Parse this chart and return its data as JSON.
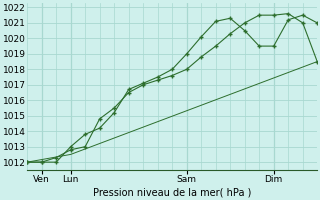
{
  "bg_color": "#cff0ec",
  "grid_color": "#a8d8d0",
  "line_color": "#2d6e2d",
  "marker_color": "#2d6e2d",
  "title": "Pression niveau de la mer( hPa )",
  "ylabel_ticks": [
    1012,
    1013,
    1014,
    1015,
    1016,
    1017,
    1018,
    1019,
    1020,
    1021,
    1022
  ],
  "ylim": [
    1011.5,
    1022.3
  ],
  "xlim": [
    0,
    20
  ],
  "x_ticks": [
    1,
    3,
    11,
    17
  ],
  "x_tick_labels": [
    "Ven",
    "Lun",
    "Sam",
    "Dim"
  ],
  "series1_x": [
    0,
    1,
    2,
    3,
    4,
    5,
    6,
    7,
    8,
    9,
    10,
    11,
    12,
    13,
    14,
    15,
    16,
    17,
    18,
    19,
    20
  ],
  "series1_y": [
    1012.0,
    1012.0,
    1012.0,
    1013.0,
    1013.8,
    1014.2,
    1015.2,
    1016.7,
    1017.1,
    1017.5,
    1018.0,
    1019.0,
    1020.1,
    1021.1,
    1021.3,
    1020.5,
    1019.5,
    1019.5,
    1021.2,
    1021.5,
    1021.0
  ],
  "series2_x": [
    0,
    1,
    2,
    3,
    4,
    5,
    6,
    7,
    8,
    9,
    10,
    11,
    12,
    13,
    14,
    15,
    16,
    17,
    18,
    19,
    20
  ],
  "series2_y": [
    1012.0,
    1012.0,
    1012.3,
    1012.8,
    1013.0,
    1014.8,
    1015.5,
    1016.5,
    1017.0,
    1017.3,
    1017.6,
    1018.0,
    1018.8,
    1019.5,
    1020.3,
    1021.0,
    1021.5,
    1021.5,
    1021.6,
    1021.0,
    1018.5
  ],
  "series3_x": [
    0,
    3,
    20
  ],
  "series3_y": [
    1012.0,
    1012.5,
    1018.5
  ]
}
